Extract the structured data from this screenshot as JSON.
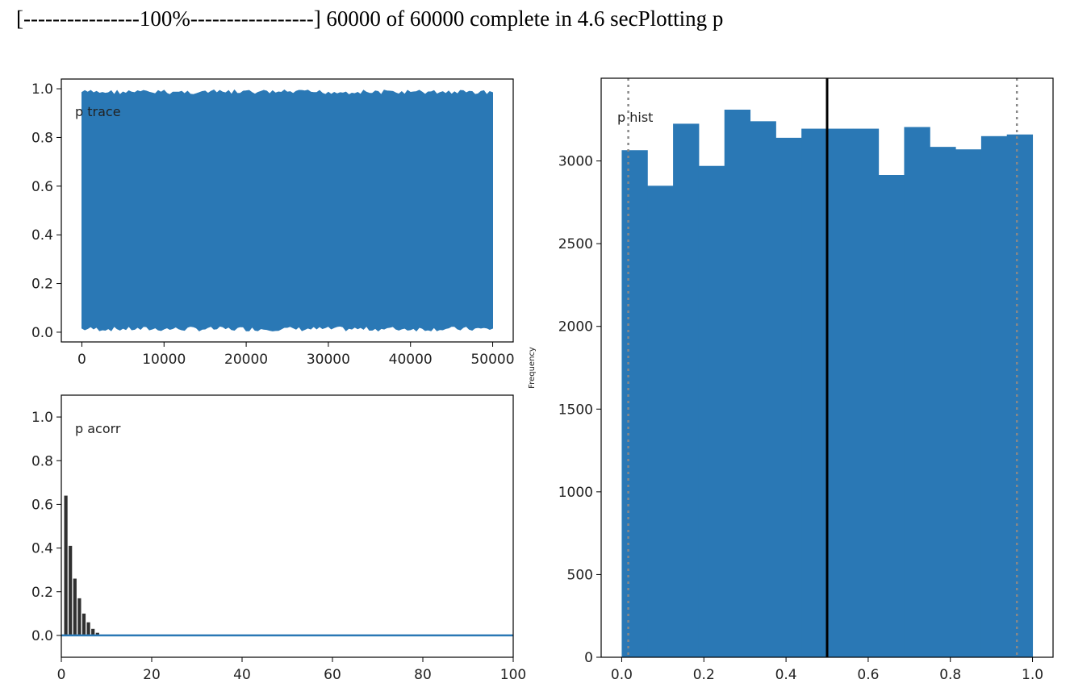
{
  "header": {
    "progress_text": "[----------------100%-----------------] 60000 of 60000 complete in 4.6 secPlotting p"
  },
  "colors": {
    "series": "#2a78b5",
    "acorr_bars": "#303030",
    "mean_line": "#000000",
    "hpd_line": "#888888",
    "axis": "#000000"
  },
  "chart_data": [
    {
      "type": "area",
      "title": "p trace",
      "xlabel": "",
      "ylabel": "",
      "xlim": [
        -2500,
        52500
      ],
      "ylim": [
        -0.04,
        1.04
      ],
      "xticks": [
        0,
        10000,
        20000,
        30000,
        40000,
        50000
      ],
      "yticks": [
        0.0,
        0.2,
        0.4,
        0.6,
        0.8,
        1.0
      ],
      "x_range": [
        0,
        50000
      ],
      "upper_envelope": 0.995,
      "lower_envelope": 0.005,
      "samples": 50000
    },
    {
      "type": "bar",
      "title": "p acorr",
      "xlabel": "",
      "ylabel": "",
      "xlim": [
        0,
        100
      ],
      "ylim": [
        -0.1,
        1.1
      ],
      "xticks": [
        0,
        20,
        40,
        60,
        80,
        100
      ],
      "yticks": [
        0.0,
        0.2,
        0.4,
        0.6,
        0.8,
        1.0
      ],
      "lags": [
        1,
        2,
        3,
        4,
        5,
        6,
        7,
        8
      ],
      "values": [
        0.64,
        0.41,
        0.26,
        0.17,
        0.1,
        0.06,
        0.03,
        0.012
      ],
      "baseline": 0.0
    },
    {
      "type": "bar",
      "title": "p hist",
      "xlabel": "",
      "ylabel": "Frequency",
      "xlim": [
        -0.05,
        1.05
      ],
      "ylim": [
        0,
        3500
      ],
      "xticks": [
        0.0,
        0.2,
        0.4,
        0.6,
        0.8,
        1.0
      ],
      "yticks": [
        0,
        500,
        1000,
        1500,
        2000,
        2500,
        3000
      ],
      "bin_edges": [
        0.0,
        0.0625,
        0.125,
        0.1875,
        0.25,
        0.3125,
        0.375,
        0.4375,
        0.5,
        0.5625,
        0.625,
        0.6875,
        0.75,
        0.8125,
        0.875,
        0.9375,
        1.0
      ],
      "values": [
        3065,
        2850,
        3225,
        2970,
        3310,
        3240,
        3140,
        3195,
        3195,
        3195,
        2915,
        3205,
        3085,
        3070,
        3150,
        3160
      ],
      "mean": 0.5,
      "hpd": [
        0.016,
        0.962
      ]
    }
  ]
}
